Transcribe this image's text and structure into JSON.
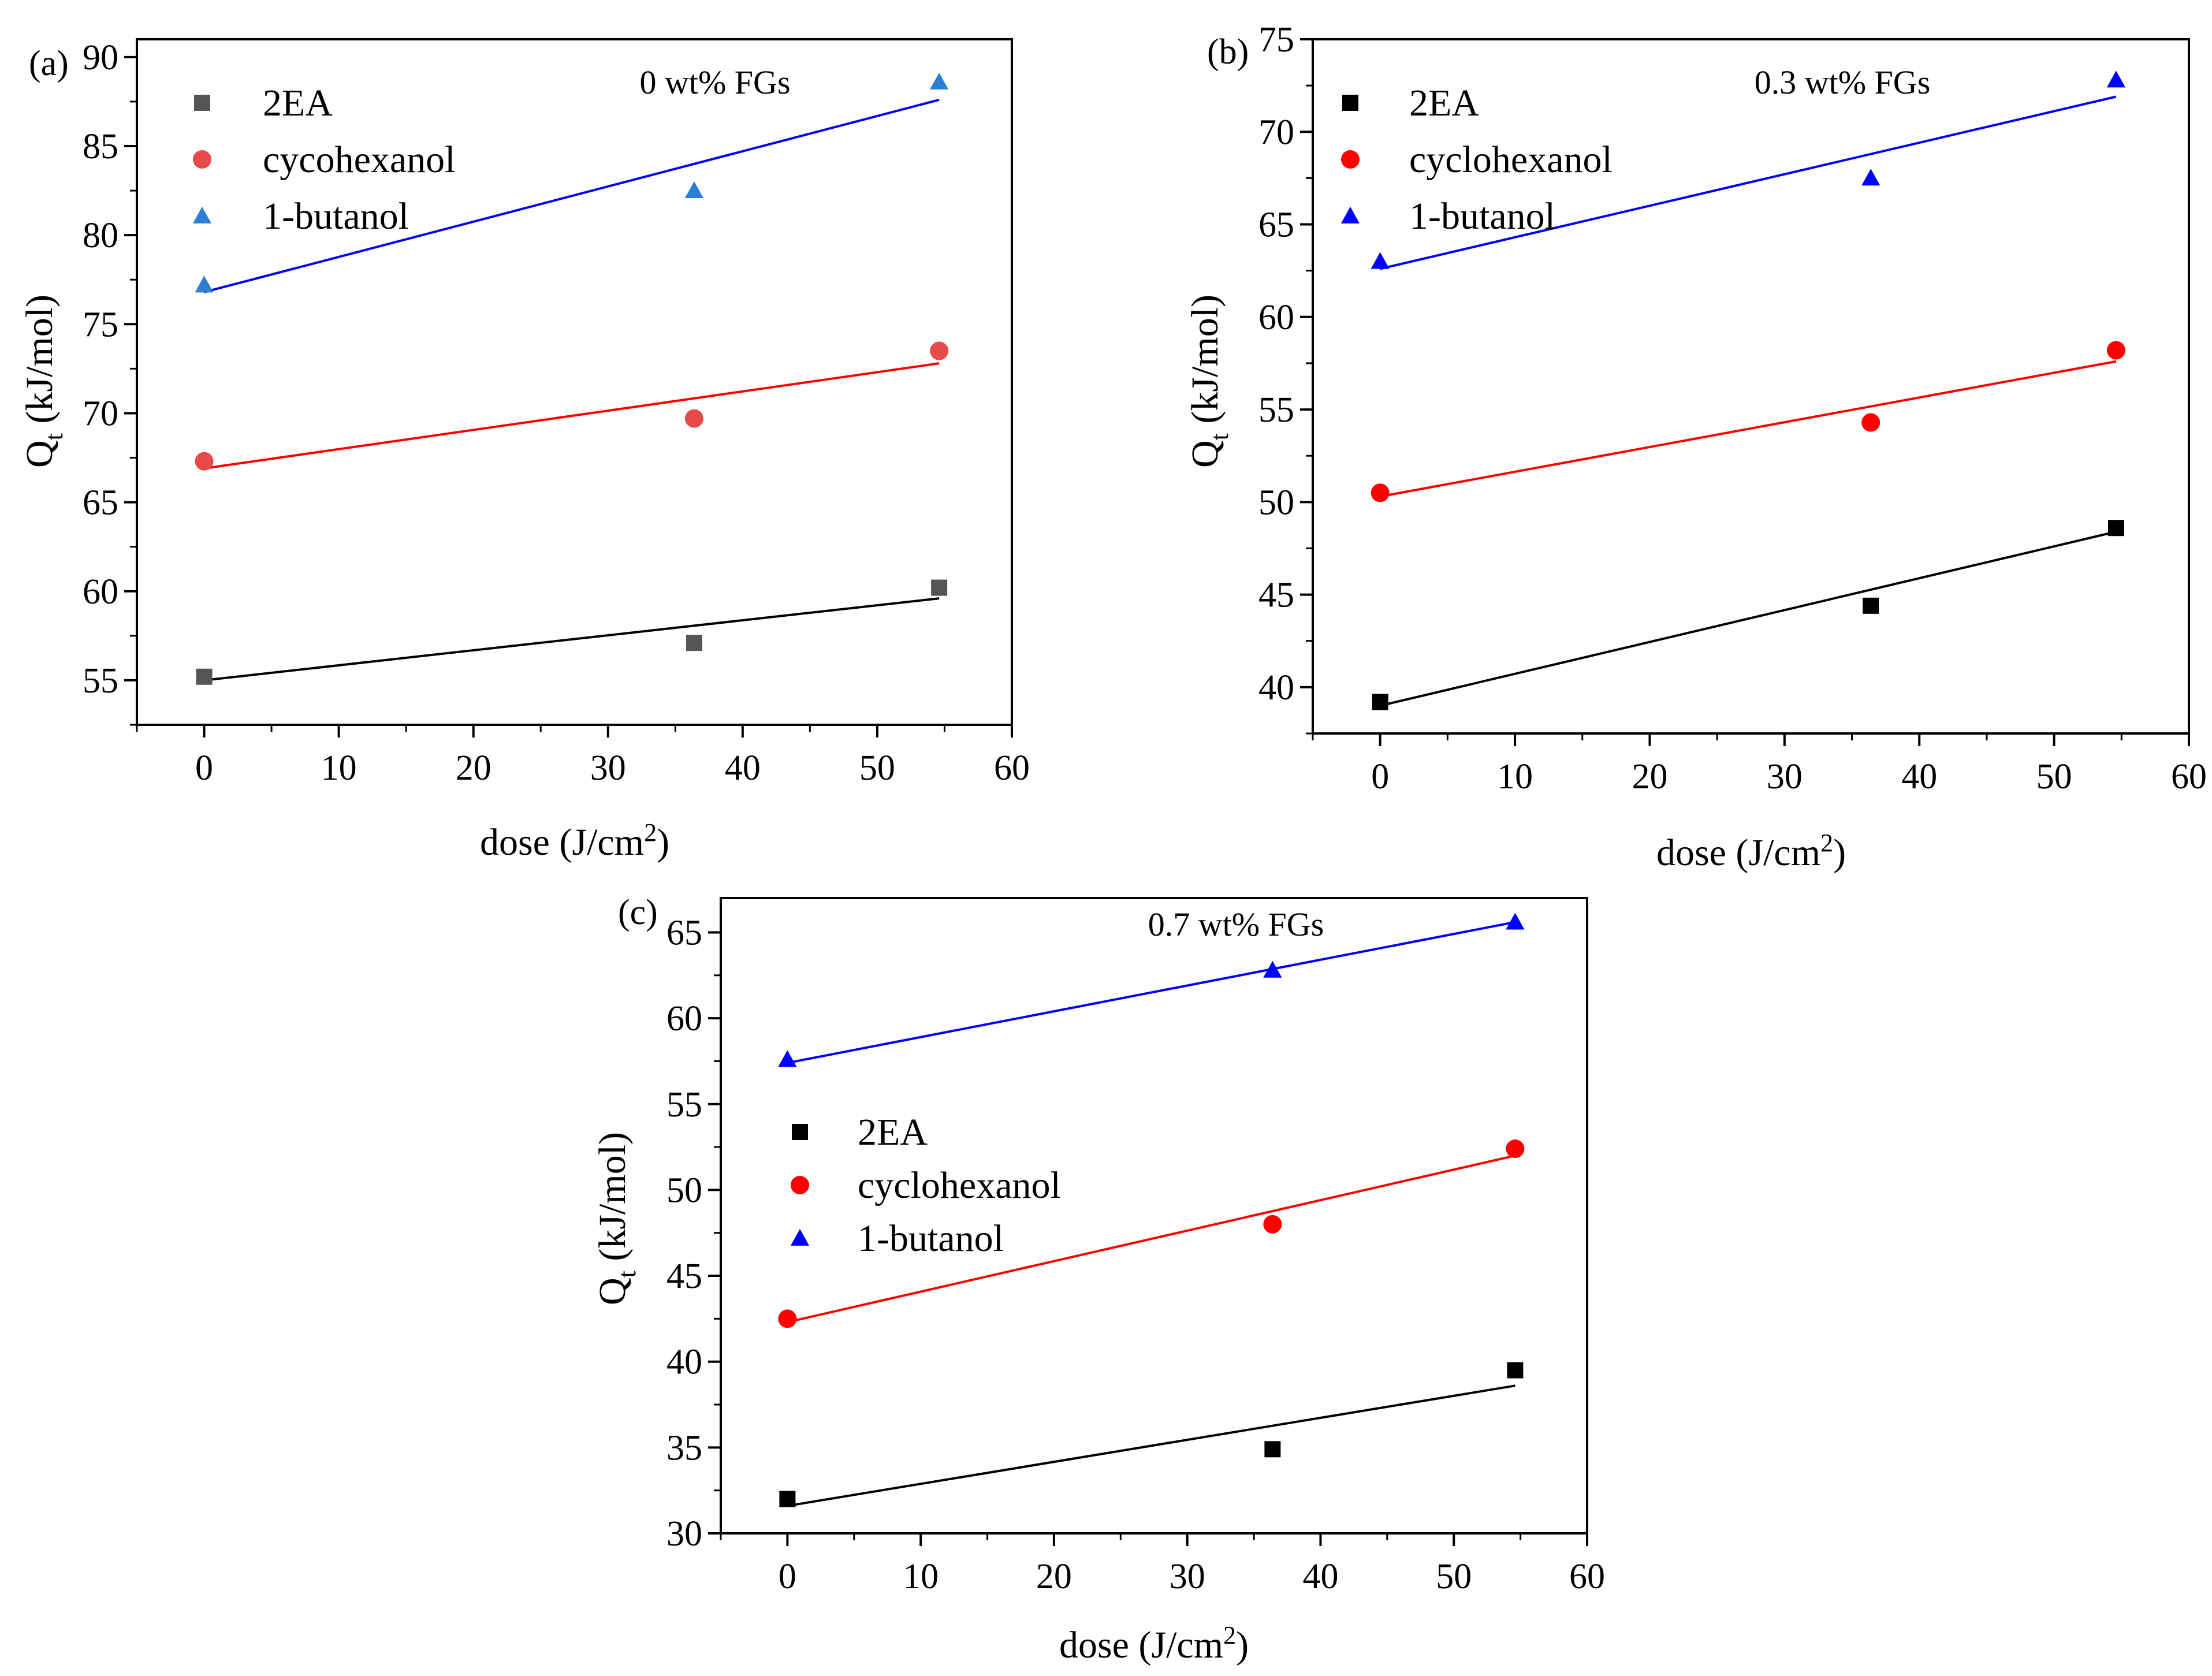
{
  "chart_data": [
    {
      "type": "scatter",
      "panel_label": "(a)",
      "annotation": "0 wt% FGs",
      "xlabel": "dose (J/cm",
      "xlabel_sup": "2",
      "xlabel_suffix": ")",
      "ylabel_main": "Q",
      "ylabel_sub": "t",
      "ylabel_rest": " (kJ/mol)",
      "xlim": [
        -5,
        60
      ],
      "ylim": [
        52.5,
        91
      ],
      "xticks": [
        0,
        10,
        20,
        30,
        40,
        50,
        60
      ],
      "yticks": [
        55,
        60,
        65,
        70,
        75,
        80,
        85,
        90
      ],
      "legend_position": "top-left",
      "series": [
        {
          "name": "2EA",
          "marker": "square",
          "color": "#555555",
          "line_color": "#000000",
          "x": [
            0,
            36.4,
            54.6
          ],
          "y": [
            55.2,
            57.1,
            60.2
          ],
          "fit": [
            [
              0,
              55.0
            ],
            [
              54.6,
              59.6
            ]
          ]
        },
        {
          "name": "cycohexanol",
          "marker": "circle",
          "color": "#e84a4a",
          "line_color": "#ff0000",
          "x": [
            0,
            36.4,
            54.6
          ],
          "y": [
            67.3,
            69.7,
            73.5
          ],
          "fit": [
            [
              0,
              66.9
            ],
            [
              54.6,
              72.8
            ]
          ]
        },
        {
          "name": "1-butanol",
          "marker": "triangle",
          "color": "#2a7fd4",
          "line_color": "#0000ff",
          "x": [
            0,
            36.4,
            54.6
          ],
          "y": [
            77.2,
            82.5,
            88.6
          ],
          "fit": [
            [
              0,
              76.8
            ],
            [
              54.6,
              87.6
            ]
          ]
        }
      ]
    },
    {
      "type": "scatter",
      "panel_label": "(b)",
      "annotation": "0.3 wt% FGs",
      "xlabel": "dose (J/cm",
      "xlabel_sup": "2",
      "xlabel_suffix": ")",
      "ylabel_main": "Q",
      "ylabel_sub": "t",
      "ylabel_rest": " (kJ/mol)",
      "xlim": [
        -5,
        60
      ],
      "ylim": [
        37.5,
        75
      ],
      "xticks": [
        0,
        10,
        20,
        30,
        40,
        50,
        60
      ],
      "yticks": [
        40,
        45,
        50,
        55,
        60,
        65,
        70,
        75
      ],
      "legend_position": "top-left",
      "series": [
        {
          "name": "2EA",
          "marker": "square",
          "color": "#000000",
          "line_color": "#000000",
          "x": [
            0,
            36.4,
            54.6
          ],
          "y": [
            39.2,
            44.4,
            48.6
          ],
          "fit": [
            [
              0,
              39.0
            ],
            [
              54.6,
              48.4
            ]
          ]
        },
        {
          "name": "cyclohexanol",
          "marker": "circle",
          "color": "#ff0000",
          "line_color": "#ff0000",
          "x": [
            0,
            36.4,
            54.6
          ],
          "y": [
            50.5,
            54.3,
            58.2
          ],
          "fit": [
            [
              0,
              50.3
            ],
            [
              54.6,
              57.6
            ]
          ]
        },
        {
          "name": "1-butanol",
          "marker": "triangle",
          "color": "#0000ff",
          "line_color": "#0000ff",
          "x": [
            0,
            36.4,
            54.6
          ],
          "y": [
            63.0,
            67.5,
            72.8
          ],
          "fit": [
            [
              0,
              62.6
            ],
            [
              54.6,
              71.9
            ]
          ]
        }
      ]
    },
    {
      "type": "scatter",
      "panel_label": "(c)",
      "annotation": "0.7 wt% FGs",
      "xlabel": "dose (J/cm",
      "xlabel_sup": "2",
      "xlabel_suffix": ")",
      "ylabel_main": "Q",
      "ylabel_sub": "t",
      "ylabel_rest": " (kJ/mol)",
      "xlim": [
        -5,
        60
      ],
      "ylim": [
        30,
        67
      ],
      "xticks": [
        0,
        10,
        20,
        30,
        40,
        50,
        60
      ],
      "yticks": [
        30,
        35,
        40,
        45,
        50,
        55,
        60,
        65
      ],
      "legend_position": "middle-left",
      "series": [
        {
          "name": "2EA",
          "marker": "square",
          "color": "#000000",
          "line_color": "#000000",
          "x": [
            0,
            36.4,
            54.6
          ],
          "y": [
            32.0,
            34.9,
            39.5
          ],
          "fit": [
            [
              0,
              31.6
            ],
            [
              54.6,
              38.6
            ]
          ]
        },
        {
          "name": "cyclohexanol",
          "marker": "circle",
          "color": "#ff0000",
          "line_color": "#ff0000",
          "x": [
            0,
            36.4,
            54.6
          ],
          "y": [
            42.5,
            48.0,
            52.4
          ],
          "fit": [
            [
              0,
              42.3
            ],
            [
              54.6,
              52.0
            ]
          ]
        },
        {
          "name": "1-butanol",
          "marker": "triangle",
          "color": "#0000ff",
          "line_color": "#0000ff",
          "x": [
            0,
            36.4,
            54.6
          ],
          "y": [
            57.6,
            62.8,
            65.6
          ],
          "fit": [
            [
              0,
              57.4
            ],
            [
              54.6,
              65.6
            ]
          ]
        }
      ]
    }
  ]
}
